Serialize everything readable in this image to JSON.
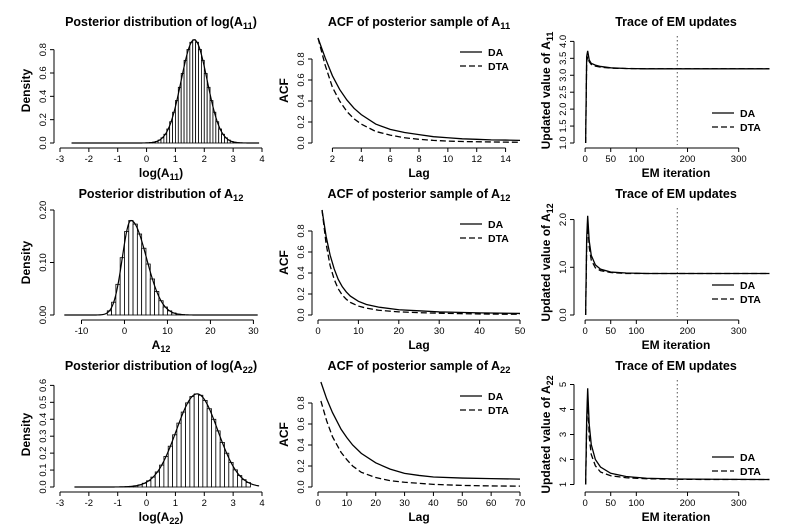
{
  "chart_data": [
    {
      "id": "p11",
      "type": "bar",
      "title": "Posterior distribution of log(A11)",
      "title_main": "Posterior distribution of log(A",
      "title_sub": "11",
      "title_end": ")",
      "xlabel_main": "log(A",
      "xlabel_sub": "11",
      "xlabel_end": ")",
      "ylabel": "Density",
      "xlim": [
        -3,
        4
      ],
      "ylim": [
        0,
        0.9
      ],
      "xticks": [
        -3,
        -2,
        -1,
        0,
        1,
        2,
        3,
        4
      ],
      "yticks": [
        0.0,
        0.2,
        0.4,
        0.6,
        0.8
      ],
      "ytick_labels": [
        "0.0",
        "0.2",
        "0.4",
        "0.6",
        "0.8"
      ],
      "density": {
        "mean": 1.65,
        "sd": 0.45,
        "peak": 0.885,
        "min": -2.6,
        "max": 3.9
      },
      "bins": {
        "start": 0.0,
        "end": 3.4,
        "width": 0.1
      }
    },
    {
      "id": "acf11",
      "type": "line",
      "title": "ACF of posterior sample of A11",
      "title_main": "ACF of posterior sample of A",
      "title_sub": "11",
      "title_end": "",
      "xlabel_main": "Lag",
      "ylabel": "ACF",
      "xlim": [
        1,
        15
      ],
      "ylim": [
        0,
        1
      ],
      "xticks": [
        2,
        4,
        6,
        8,
        10,
        12,
        14
      ],
      "yticks": [
        0.0,
        0.2,
        0.4,
        0.6,
        0.8
      ],
      "ytick_labels": [
        "0.0",
        "0.2",
        "0.4",
        "0.6",
        "0.8"
      ],
      "legend": [
        "DA",
        "DTA"
      ],
      "series": [
        {
          "name": "DA",
          "x": [
            1,
            1.5,
            2,
            2.5,
            3,
            3.5,
            4,
            5,
            6,
            7,
            8,
            9,
            10,
            11,
            12,
            13,
            14,
            15
          ],
          "y": [
            1.0,
            0.81,
            0.64,
            0.51,
            0.41,
            0.33,
            0.27,
            0.18,
            0.13,
            0.1,
            0.08,
            0.06,
            0.05,
            0.04,
            0.035,
            0.03,
            0.028,
            0.025
          ]
        },
        {
          "name": "DTA",
          "x": [
            1,
            1.5,
            2,
            2.5,
            3,
            3.5,
            4,
            5,
            6,
            7,
            8,
            9,
            10,
            11,
            12,
            13,
            14,
            15
          ],
          "y": [
            1.0,
            0.74,
            0.53,
            0.4,
            0.3,
            0.23,
            0.18,
            0.11,
            0.075,
            0.05,
            0.035,
            0.025,
            0.018,
            0.014,
            0.012,
            0.01,
            0.008,
            0.007
          ]
        }
      ]
    },
    {
      "id": "em11",
      "type": "line",
      "title": "Trace of EM updates",
      "xlabel_main": "EM iteration",
      "ylabel_main": "Updated value of A",
      "ylabel_sub": "11",
      "xlim": [
        -10,
        365
      ],
      "ylim": [
        1.0,
        4.1
      ],
      "xticks": [
        0,
        50,
        100,
        200,
        300
      ],
      "yticks": [
        1.0,
        1.5,
        2.0,
        2.5,
        3.0,
        3.5,
        4.0
      ],
      "ytick_labels": [
        "1.0",
        "1.5",
        "2.0",
        "2.5",
        "3.0",
        "3.5",
        "4.0"
      ],
      "vline": 180,
      "legend": [
        "DA",
        "DTA"
      ],
      "series": [
        {
          "name": "DA",
          "x": [
            1,
            3,
            5,
            8,
            12,
            20,
            30,
            50,
            80,
            120,
            180,
            250,
            360
          ],
          "y": [
            1.0,
            3.55,
            3.72,
            3.45,
            3.35,
            3.3,
            3.26,
            3.22,
            3.2,
            3.19,
            3.19,
            3.19,
            3.19
          ]
        },
        {
          "name": "DTA",
          "x": [
            1,
            3,
            5,
            8,
            12,
            20,
            30,
            50,
            80,
            120,
            180,
            250,
            360
          ],
          "y": [
            1.0,
            3.4,
            3.55,
            3.4,
            3.32,
            3.27,
            3.24,
            3.21,
            3.2,
            3.19,
            3.19,
            3.19,
            3.19
          ]
        }
      ]
    },
    {
      "id": "p12",
      "type": "bar",
      "title": "Posterior distribution of A12",
      "title_main": "Posterior distribution of A",
      "title_sub": "12",
      "title_end": "",
      "xlabel_main": "A",
      "xlabel_sub": "12",
      "xlabel_end": "",
      "ylabel": "Density",
      "xlim": [
        -15,
        32
      ],
      "ylim": [
        0,
        0.2
      ],
      "xticks": [
        -10,
        0,
        10,
        20,
        30
      ],
      "yticks": [
        0.0,
        0.1,
        0.2
      ],
      "ytick_labels": [
        "0.00",
        "0.10",
        "0.20"
      ],
      "density": {
        "mode": 1.5,
        "sdl": 2.0,
        "sdr": 3.6,
        "peak": 0.18,
        "min": -14,
        "max": 31
      },
      "bins": {
        "start": -4,
        "end": 14,
        "width": 1
      }
    },
    {
      "id": "acf12",
      "type": "line",
      "title": "ACF of posterior sample of A12",
      "title_main": "ACF of posterior sample of A",
      "title_sub": "12",
      "title_end": "",
      "xlabel_main": "Lag",
      "ylabel": "ACF",
      "xlim": [
        0,
        50
      ],
      "ylim": [
        0,
        1
      ],
      "xticks": [
        0,
        10,
        20,
        30,
        40,
        50
      ],
      "yticks": [
        0.0,
        0.2,
        0.4,
        0.6,
        0.8
      ],
      "ytick_labels": [
        "0.0",
        "0.2",
        "0.4",
        "0.6",
        "0.8"
      ],
      "legend": [
        "DA",
        "DTA"
      ],
      "series": [
        {
          "name": "DA",
          "x": [
            1,
            2,
            3,
            4,
            5,
            6,
            7,
            8,
            10,
            12,
            15,
            20,
            25,
            30,
            35,
            40,
            45,
            50
          ],
          "y": [
            1.0,
            0.75,
            0.57,
            0.44,
            0.34,
            0.27,
            0.22,
            0.18,
            0.13,
            0.1,
            0.075,
            0.05,
            0.04,
            0.03,
            0.025,
            0.02,
            0.018,
            0.015
          ]
        },
        {
          "name": "DTA",
          "x": [
            1,
            2,
            3,
            4,
            5,
            6,
            7,
            8,
            10,
            12,
            15,
            20,
            25,
            30,
            35,
            40,
            45,
            50
          ],
          "y": [
            1.0,
            0.68,
            0.47,
            0.34,
            0.25,
            0.19,
            0.15,
            0.12,
            0.085,
            0.065,
            0.045,
            0.03,
            0.022,
            0.017,
            0.013,
            0.01,
            0.008,
            0.007
          ]
        }
      ]
    },
    {
      "id": "em12",
      "type": "line",
      "title": "Trace of EM updates",
      "xlabel_main": "EM iteration",
      "ylabel_main": "Updated value of A",
      "ylabel_sub": "12",
      "xlim": [
        -10,
        365
      ],
      "ylim": [
        0,
        2.2
      ],
      "xticks": [
        0,
        50,
        100,
        200,
        300
      ],
      "yticks": [
        0.0,
        1.0,
        2.0
      ],
      "ytick_labels": [
        "0.0",
        "1.0",
        "2.0"
      ],
      "vline": 180,
      "legend": [
        "DA",
        "DTA"
      ],
      "series": [
        {
          "name": "DA",
          "x": [
            1,
            3,
            5,
            8,
            12,
            20,
            30,
            50,
            80,
            120,
            180,
            250,
            360
          ],
          "y": [
            0.0,
            1.6,
            2.08,
            1.55,
            1.25,
            1.05,
            0.96,
            0.9,
            0.88,
            0.87,
            0.87,
            0.87,
            0.87
          ]
        },
        {
          "name": "DTA",
          "x": [
            1,
            3,
            5,
            8,
            12,
            20,
            30,
            50,
            80,
            120,
            180,
            250,
            360
          ],
          "y": [
            0.0,
            1.4,
            1.95,
            1.42,
            1.15,
            0.99,
            0.93,
            0.89,
            0.87,
            0.87,
            0.87,
            0.87,
            0.87
          ]
        }
      ]
    },
    {
      "id": "p22",
      "type": "bar",
      "title": "Posterior distribution of log(A22)",
      "title_main": "Posterior distribution of log(A",
      "title_sub": "22",
      "title_end": ")",
      "xlabel_main": "log(A",
      "xlabel_sub": "22",
      "xlabel_end": ")",
      "ylabel": "Density",
      "xlim": [
        -3,
        4
      ],
      "ylim": [
        0,
        0.62
      ],
      "xticks": [
        -3,
        -2,
        -1,
        0,
        1,
        2,
        3,
        4
      ],
      "yticks": [
        0.0,
        0.1,
        0.2,
        0.3,
        0.4,
        0.5,
        0.6
      ],
      "ytick_labels": [
        "0.0",
        "0.1",
        "0.2",
        "0.3",
        "0.4",
        "0.5",
        "0.6"
      ],
      "density": {
        "mean": 1.75,
        "sd": 0.72,
        "peak": 0.55,
        "min": -2.5,
        "max": 3.9
      },
      "bins": {
        "start": -0.9,
        "end": 3.6,
        "width": 0.15
      }
    },
    {
      "id": "acf22",
      "type": "line",
      "title": "ACF of posterior sample of A22",
      "title_main": "ACF of posterior sample of A",
      "title_sub": "22",
      "title_end": "",
      "xlabel_main": "Lag",
      "ylabel": "ACF",
      "xlim": [
        0,
        70
      ],
      "ylim": [
        0,
        1
      ],
      "xticks": [
        0,
        10,
        20,
        30,
        40,
        50,
        60,
        70
      ],
      "yticks": [
        0.0,
        0.2,
        0.4,
        0.6,
        0.8
      ],
      "ytick_labels": [
        "0.0",
        "0.2",
        "0.4",
        "0.6",
        "0.8"
      ],
      "legend": [
        "DA",
        "DTA"
      ],
      "series": [
        {
          "name": "DA",
          "x": [
            1,
            3,
            5,
            8,
            10,
            12,
            15,
            20,
            25,
            30,
            35,
            40,
            50,
            60,
            70
          ],
          "y": [
            1.0,
            0.84,
            0.71,
            0.55,
            0.47,
            0.4,
            0.32,
            0.23,
            0.17,
            0.13,
            0.11,
            0.095,
            0.085,
            0.08,
            0.075
          ]
        },
        {
          "name": "DTA",
          "x": [
            1,
            3,
            5,
            8,
            10,
            12,
            15,
            20,
            25,
            30,
            35,
            40,
            50,
            60,
            70
          ],
          "y": [
            0.82,
            0.63,
            0.48,
            0.33,
            0.26,
            0.2,
            0.14,
            0.09,
            0.06,
            0.045,
            0.035,
            0.025,
            0.015,
            0.01,
            0.008
          ]
        }
      ]
    },
    {
      "id": "em22",
      "type": "line",
      "title": "Trace of EM updates",
      "xlabel_main": "EM iteration",
      "ylabel_main": "Updated value of A",
      "ylabel_sub": "22",
      "xlim": [
        -10,
        365
      ],
      "ylim": [
        0.9,
        5.1
      ],
      "xticks": [
        0,
        50,
        100,
        200,
        300
      ],
      "yticks": [
        1,
        2,
        3,
        4,
        5
      ],
      "ytick_labels": [
        "1",
        "2",
        "3",
        "4",
        "5"
      ],
      "vline": 180,
      "legend": [
        "DA",
        "DTA"
      ],
      "series": [
        {
          "name": "DA",
          "x": [
            1,
            3,
            5,
            8,
            12,
            20,
            30,
            50,
            80,
            120,
            180,
            250,
            360
          ],
          "y": [
            1.0,
            3.6,
            4.85,
            3.4,
            2.6,
            2.0,
            1.7,
            1.45,
            1.32,
            1.25,
            1.22,
            1.21,
            1.2
          ]
        },
        {
          "name": "DTA",
          "x": [
            1,
            3,
            5,
            8,
            12,
            20,
            30,
            50,
            80,
            120,
            180,
            250,
            360
          ],
          "y": [
            1.0,
            3.2,
            4.5,
            2.9,
            2.2,
            1.75,
            1.5,
            1.35,
            1.27,
            1.23,
            1.21,
            1.2,
            1.2
          ]
        }
      ]
    }
  ]
}
